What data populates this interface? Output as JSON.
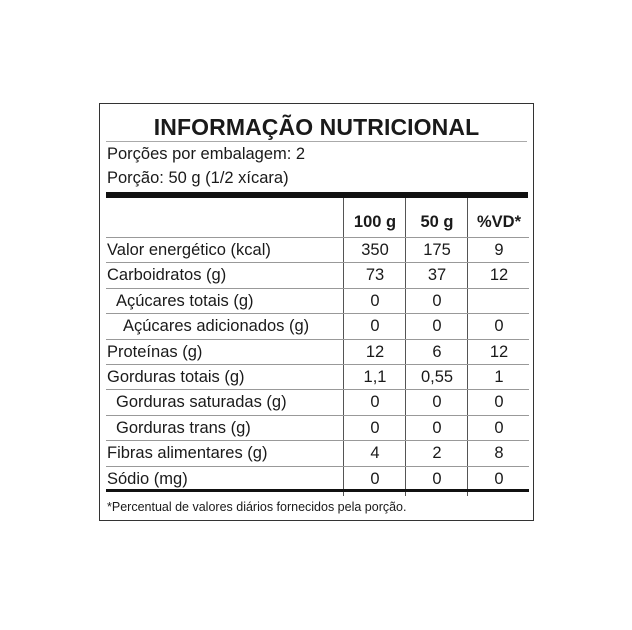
{
  "title": "INFORMAÇÃO NUTRICIONAL",
  "servings_per_package": "Porções por embalagem: 2",
  "serving_size": "Porção: 50 g (1/2 xícara)",
  "columns": [
    "100 g",
    "50 g",
    "%VD*"
  ],
  "rows": [
    {
      "label": "Valor energético (kcal)",
      "indent": 0,
      "v": [
        "350",
        "175",
        "9"
      ]
    },
    {
      "label": "Carboidratos (g)",
      "indent": 0,
      "v": [
        "73",
        "37",
        "12"
      ]
    },
    {
      "label": "Açúcares totais (g)",
      "indent": 1,
      "v": [
        "0",
        "0",
        ""
      ]
    },
    {
      "label": "Açúcares adicionados (g)",
      "indent": 2,
      "v": [
        "0",
        "0",
        "0"
      ]
    },
    {
      "label": "Proteínas (g)",
      "indent": 0,
      "v": [
        "12",
        "6",
        "12"
      ]
    },
    {
      "label": "Gorduras totais (g)",
      "indent": 0,
      "v": [
        "1,1",
        "0,55",
        "1"
      ]
    },
    {
      "label": "Gorduras saturadas (g)",
      "indent": 1,
      "v": [
        "0",
        "0",
        "0"
      ]
    },
    {
      "label": "Gorduras trans (g)",
      "indent": 1,
      "v": [
        "0",
        "0",
        "0"
      ]
    },
    {
      "label": "Fibras alimentares (g)",
      "indent": 0,
      "v": [
        "4",
        "2",
        "8"
      ]
    },
    {
      "label": "Sódio (mg)",
      "indent": 0,
      "v": [
        "0",
        "0",
        "0"
      ]
    }
  ],
  "footnote": "*Percentual de valores diários fornecidos pela porção."
}
